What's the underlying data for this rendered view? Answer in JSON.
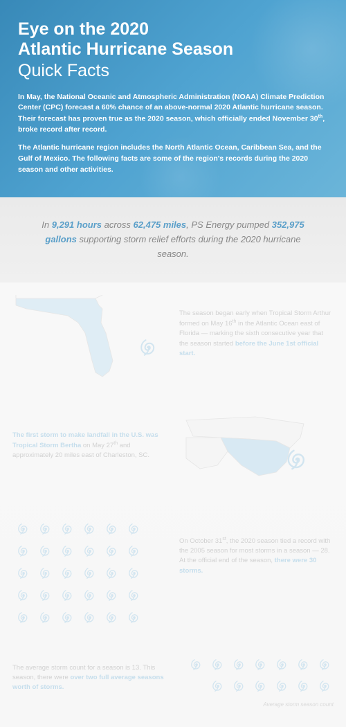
{
  "hero": {
    "title_line1": "Eye on the 2020",
    "title_line2": "Atlantic Hurricane Season",
    "subtitle": "Quick Facts",
    "intro1_a": "In May, the National Oceanic and Atmospheric Administration (NOAA) Climate Prediction Center (CPC) forecast a 60% chance of an above-normal 2020 Atlantic hurricane season. Their forecast has proven true as the 2020 season, which officially ended November 30",
    "intro1_sup": "th",
    "intro1_b": ", broke record after record.",
    "intro2": "The Atlantic hurricane region includes the North Atlantic Ocean, Caribbean Sea, and the Gulf of Mexico. The following facts are some of the region's records during the 2020 season and other activities.",
    "bg_color_start": "#3889b8",
    "bg_color_end": "#6bb5d9"
  },
  "stat": {
    "pre": "In ",
    "hours": "9,291 hours",
    "mid1": " across ",
    "miles": "62,475 miles",
    "mid2": ", PS Energy pumped ",
    "gallons": "352,975 gallons",
    "post": " supporting storm relief efforts during the 2020 hurricane season.",
    "highlight_color": "#5a9fc9",
    "text_color": "#888888"
  },
  "fact1": {
    "text_a": "The season began early when Tropical Storm Arthur formed on May 16",
    "sup": "th",
    "text_b": " in the Atlantic Ocean east of Florida — marking the sixth consecutive year that the season started ",
    "em": "before the June 1st official start.",
    "map_fill": "#b8d8e8",
    "map_stroke": "#d0d0d0"
  },
  "fact2": {
    "em": "The first storm to make landfall in the U.S. was Tropical Storm Bertha",
    "text_a": " on May 27",
    "sup": "th",
    "text_b": " and approximately 20 miles east of Charleston, SC.",
    "map_fill": "#a8cfe4",
    "map_stroke": "#d0d0d0"
  },
  "fact3": {
    "storm_count": 30,
    "grid_cols": 7,
    "text_a": "On October 31",
    "sup": "st",
    "text_b": ", the 2020 season tied a record with the 2005 season for most storms in a season — 28. At the official end of the season, ",
    "em": "there were 30 storms."
  },
  "fact4": {
    "avg_count": 13,
    "grid_cols": 7,
    "text_a": "The average storm count for a season is 13. This season, there were ",
    "em": "over two full average seasons worth of storms.",
    "caption": "Average storm season count"
  },
  "colors": {
    "spiral_stroke": "#9cc5de",
    "fact_text": "#999999",
    "fact_em": "#7fb5d6",
    "overlay": "rgba(255,255,255,0.55)"
  }
}
